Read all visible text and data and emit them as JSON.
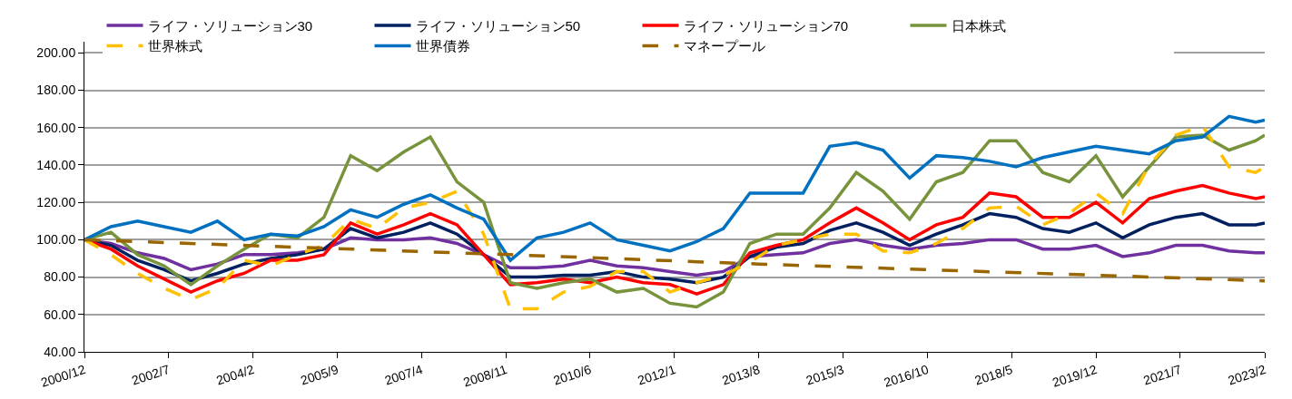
{
  "chart_data": {
    "type": "line",
    "x": [
      "2000-12",
      "2001-06",
      "2001-12",
      "2002-06",
      "2002-12",
      "2003-06",
      "2003-12",
      "2004-06",
      "2004-12",
      "2005-06",
      "2005-12",
      "2006-06",
      "2006-12",
      "2007-06",
      "2007-12",
      "2008-06",
      "2008-12",
      "2009-06",
      "2009-12",
      "2010-06",
      "2010-12",
      "2011-06",
      "2011-12",
      "2012-06",
      "2012-12",
      "2013-06",
      "2013-12",
      "2014-06",
      "2014-12",
      "2015-06",
      "2015-12",
      "2016-06",
      "2016-12",
      "2017-06",
      "2017-12",
      "2018-06",
      "2018-12",
      "2019-06",
      "2019-12",
      "2020-06",
      "2020-12",
      "2021-06",
      "2021-12",
      "2022-06",
      "2022-12",
      "2023-02"
    ],
    "series": [
      {
        "name": "ライフ・ソリューション30",
        "color": "#7030a0",
        "values": [
          100,
          98,
          93,
          90,
          84,
          87,
          92,
          92,
          93,
          95,
          101,
          100,
          100,
          101,
          98,
          92,
          85,
          85,
          86,
          89,
          86,
          85,
          83,
          81,
          83,
          91,
          92,
          93,
          98,
          100,
          97,
          95,
          97,
          98,
          100,
          100,
          95,
          95,
          97,
          91,
          93,
          97,
          97,
          94,
          93,
          93
        ]
      },
      {
        "name": "ライフ・ソリューション50",
        "color": "#002060",
        "values": [
          100,
          97,
          89,
          84,
          78,
          82,
          87,
          90,
          92,
          95,
          106,
          101,
          104,
          109,
          103,
          92,
          80,
          80,
          81,
          81,
          83,
          80,
          79,
          77,
          80,
          91,
          96,
          98,
          105,
          109,
          104,
          97,
          103,
          108,
          114,
          112,
          106,
          104,
          109,
          101,
          108,
          112,
          114,
          108,
          108,
          109
        ]
      },
      {
        "name": "ライフ・ソリューション70",
        "color": "#ff0000",
        "values": [
          100,
          95,
          86,
          79,
          72,
          78,
          82,
          89,
          89,
          92,
          109,
          103,
          108,
          114,
          108,
          92,
          76,
          77,
          79,
          77,
          80,
          77,
          76,
          71,
          76,
          93,
          97,
          100,
          109,
          117,
          109,
          100,
          108,
          112,
          125,
          123,
          112,
          112,
          120,
          109,
          122,
          126,
          129,
          125,
          122,
          123
        ]
      },
      {
        "name": "日本株式",
        "color": "#77933c",
        "values": [
          100,
          104,
          92,
          86,
          76,
          86,
          95,
          103,
          101,
          112,
          145,
          137,
          147,
          155,
          131,
          120,
          77,
          74,
          77,
          79,
          72,
          74,
          66,
          64,
          72,
          98,
          103,
          103,
          117,
          136,
          126,
          111,
          131,
          136,
          153,
          153,
          136,
          131,
          145,
          123,
          139,
          155,
          156,
          148,
          153,
          156
        ]
      },
      {
        "name": "世界株式",
        "color": "#ffc000",
        "line_style": "dashed",
        "values": [
          100,
          92,
          82,
          74,
          68,
          74,
          89,
          86,
          92,
          97,
          111,
          106,
          117,
          120,
          126,
          103,
          63,
          63,
          72,
          75,
          83,
          83,
          72,
          77,
          81,
          88,
          97,
          100,
          103,
          103,
          94,
          93,
          98,
          106,
          117,
          118,
          108,
          114,
          125,
          114,
          140,
          156,
          161,
          139,
          136,
          139
        ]
      },
      {
        "name": "世界債券",
        "color": "#0070c0",
        "values": [
          100,
          107,
          110,
          107,
          104,
          110,
          100,
          103,
          102,
          107,
          116,
          112,
          119,
          124,
          117,
          111,
          89,
          101,
          104,
          109,
          100,
          97,
          94,
          99,
          106,
          125,
          125,
          125,
          150,
          152,
          148,
          133,
          145,
          144,
          142,
          139,
          144,
          147,
          150,
          148,
          146,
          153,
          155,
          166,
          163,
          164
        ]
      },
      {
        "name": "マネープール",
        "color": "#996600",
        "line_style": "dashed",
        "x": [
          "2000-12",
          "2008-12",
          "2013-08",
          "2019-12",
          "2023-02"
        ],
        "values": [
          100,
          92,
          87,
          81,
          78
        ]
      }
    ],
    "line_style": "solid",
    "xlim": [
      "2000-12",
      "2023-02"
    ],
    "xticks": [
      {
        "value": "2000-12",
        "label": "2000/12"
      },
      {
        "value": "2002-07",
        "label": "2002/7"
      },
      {
        "value": "2004-02",
        "label": "2004/2"
      },
      {
        "value": "2005-09",
        "label": "2005/9"
      },
      {
        "value": "2007-04",
        "label": "2007/4"
      },
      {
        "value": "2008-11",
        "label": "2008/11"
      },
      {
        "value": "2010-06",
        "label": "2010/6"
      },
      {
        "value": "2012-01",
        "label": "2012/1"
      },
      {
        "value": "2013-08",
        "label": "2013/8"
      },
      {
        "value": "2015-03",
        "label": "2015/3"
      },
      {
        "value": "2016-10",
        "label": "2016/10"
      },
      {
        "value": "2018-05",
        "label": "2018/5"
      },
      {
        "value": "2019-12",
        "label": "2019/12"
      },
      {
        "value": "2021-07",
        "label": "2021/7"
      },
      {
        "value": "2023-02",
        "label": "2023/2"
      }
    ],
    "ylim": [
      40,
      206
    ],
    "yticks": [
      {
        "value": 40,
        "label": "40.00"
      },
      {
        "value": 60,
        "label": "60.00"
      },
      {
        "value": 80,
        "label": "80.00"
      },
      {
        "value": 100,
        "label": "100.00"
      },
      {
        "value": 120,
        "label": "120.00"
      },
      {
        "value": 140,
        "label": "140.00"
      },
      {
        "value": 160,
        "label": "160.00"
      },
      {
        "value": 180,
        "label": "180.00"
      },
      {
        "value": 200,
        "label": "200.00"
      }
    ],
    "grid": "y",
    "legend": "top"
  }
}
